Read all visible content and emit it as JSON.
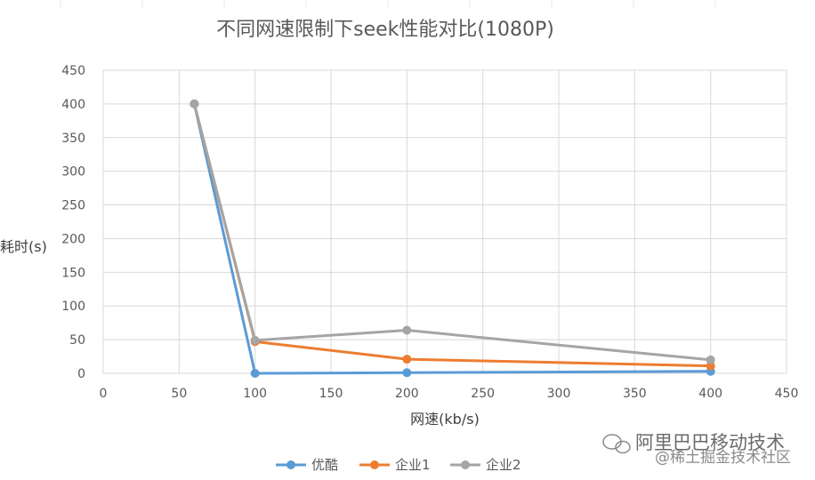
{
  "chart_data": {
    "type": "line",
    "title": "不同网速限制下seek性能对比(1080P)",
    "xlabel": "网速(kb/s)",
    "ylabel": "耗时(s)",
    "xlim": [
      0,
      450
    ],
    "ylim": [
      0,
      450
    ],
    "xticks": [
      0,
      50,
      100,
      150,
      200,
      250,
      300,
      350,
      400,
      450
    ],
    "yticks": [
      0,
      50,
      100,
      150,
      200,
      250,
      300,
      350,
      400,
      450
    ],
    "grid": true,
    "legend_position": "bottom",
    "series": [
      {
        "name": "优酷",
        "color": "#5b9bd5",
        "x": [
          60,
          100,
          200,
          400
        ],
        "y": [
          400,
          0,
          1,
          3
        ]
      },
      {
        "name": "企业1",
        "color": "#ed7d31",
        "x": [
          60,
          100,
          200,
          400
        ],
        "y": [
          400,
          47,
          21,
          11
        ]
      },
      {
        "name": "企业2",
        "color": "#a5a5a5",
        "x": [
          60,
          100,
          200,
          400
        ],
        "y": [
          400,
          49,
          64,
          20
        ]
      }
    ]
  },
  "watermark": {
    "main": "阿里巴巴移动技术",
    "sub": "@稀土掘金技术社区"
  }
}
